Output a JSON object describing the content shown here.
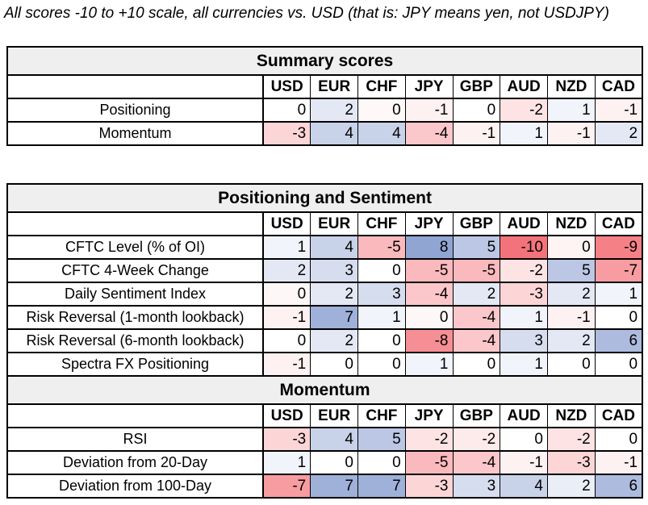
{
  "caption": "All scores -10 to +10 scale, all currencies vs. USD (that is: JPY means yen, not USDJPY)",
  "color_scale": {
    "min_value": -10,
    "max_value": 10,
    "negative_color": "#f4737a",
    "zero_color": "#ffffff",
    "positive_color": "#768ec8",
    "section_title_bg": "#efefef",
    "border_color": "#000000"
  },
  "chart_data": [
    {
      "type": "heatmap",
      "title": "Summary scores",
      "columns": [
        "USD",
        "EUR",
        "CHF",
        "JPY",
        "GBP",
        "AUD",
        "NZD",
        "CAD"
      ],
      "rows": [
        {
          "label": "Positioning",
          "values": [
            0,
            2,
            0,
            -1,
            0,
            -2,
            1,
            -1
          ],
          "shades": [
            0,
            2,
            -0.5,
            -1,
            0,
            -2,
            1,
            -1
          ]
        },
        {
          "label": "Momentum",
          "values": [
            -3,
            4,
            4,
            -4,
            -1,
            1,
            -1,
            2
          ],
          "shades": [
            -3,
            4,
            4,
            -4,
            -1,
            1,
            -1,
            2
          ]
        }
      ]
    },
    {
      "type": "heatmap",
      "title": "Positioning and Sentiment",
      "columns": [
        "USD",
        "EUR",
        "CHF",
        "JPY",
        "GBP",
        "AUD",
        "NZD",
        "CAD"
      ],
      "rows": [
        {
          "label": "CFTC Level (% of OI)",
          "values": [
            1,
            4,
            -5,
            8,
            5,
            -10,
            0,
            -9
          ],
          "shades": [
            1,
            4,
            -5,
            8,
            5,
            -10,
            -0.8,
            -9
          ]
        },
        {
          "label": "CFTC 4-Week Change",
          "values": [
            2,
            3,
            0,
            -5,
            -5,
            -2,
            5,
            -7
          ],
          "shades": [
            2,
            3,
            0,
            -5,
            -5,
            -2,
            5,
            -7
          ]
        },
        {
          "label": "Daily Sentiment Index",
          "values": [
            0,
            2,
            3,
            -4,
            2,
            -3,
            2,
            1
          ],
          "shades": [
            -0.6,
            2,
            3,
            -4,
            2,
            -3,
            2,
            1
          ]
        },
        {
          "label": "Risk Reversal (1-month lookback)",
          "values": [
            -1,
            7,
            1,
            0,
            -4,
            1,
            -1,
            0
          ],
          "shades": [
            -1,
            7,
            1,
            -0.6,
            -4,
            1,
            -1,
            0
          ]
        },
        {
          "label": "Risk Reversal (6-month lookback)",
          "values": [
            0,
            2,
            0,
            -8,
            -4,
            3,
            2,
            6
          ],
          "shades": [
            0,
            2,
            0,
            -8,
            -4,
            3,
            2,
            6
          ]
        },
        {
          "label": "Spectra FX Positioning",
          "values": [
            -1,
            0,
            0,
            1,
            0,
            1,
            0,
            0
          ],
          "shades": [
            -1,
            0,
            0,
            1,
            0,
            1,
            0,
            0
          ]
        }
      ]
    },
    {
      "type": "heatmap",
      "title": "Momentum",
      "columns": [
        "USD",
        "EUR",
        "CHF",
        "JPY",
        "GBP",
        "AUD",
        "NZD",
        "CAD"
      ],
      "rows": [
        {
          "label": "RSI",
          "values": [
            -3,
            4,
            5,
            -2,
            -2,
            0,
            -2,
            0
          ],
          "shades": [
            -3,
            4,
            5,
            -2,
            -1.5,
            0,
            -2,
            0
          ]
        },
        {
          "label": "Deviation from 20-Day",
          "values": [
            1,
            0,
            0,
            -5,
            -4,
            -1,
            -3,
            -1
          ],
          "shades": [
            1,
            0,
            0,
            -5,
            -4,
            -1,
            -3,
            -1
          ]
        },
        {
          "label": "Deviation from 100-Day",
          "values": [
            -7,
            7,
            7,
            -3,
            3,
            4,
            2,
            6
          ],
          "shades": [
            -7,
            7,
            7,
            -3,
            3,
            4,
            1.5,
            6
          ]
        }
      ]
    }
  ],
  "table_blocks": [
    [
      0
    ],
    [
      1,
      2
    ]
  ]
}
